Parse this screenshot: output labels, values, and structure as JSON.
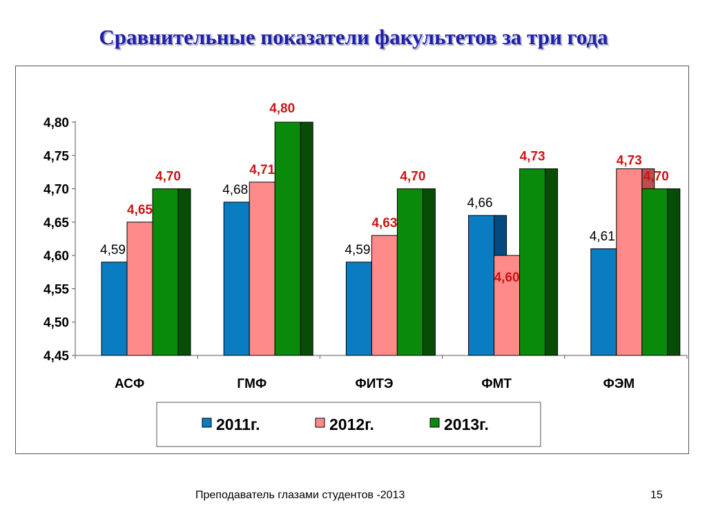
{
  "slide": {
    "title": "Сравнительные показатели факультетов за три года",
    "footer": "Преподаватель глазами студентов -2013",
    "page_number": "15"
  },
  "chart_data": {
    "type": "bar",
    "categories": [
      "АСФ",
      "ГМФ",
      "ФИТЭ",
      "ФМТ",
      "ФЭМ"
    ],
    "series": [
      {
        "name": "2011г.",
        "values": [
          4.59,
          4.68,
          4.59,
          4.66,
          4.61
        ],
        "labels": [
          "4,59",
          "4,68",
          "4,59",
          "4,66",
          "4,61"
        ],
        "color": "#0a7cc1",
        "side_color": "#044a7e",
        "label_color": "#000000"
      },
      {
        "name": "2012г.",
        "values": [
          4.65,
          4.71,
          4.63,
          4.6,
          4.73
        ],
        "labels": [
          "4,65",
          "4,71",
          "4,63",
          "4,60",
          "4,73"
        ],
        "color": "#ff8a8a",
        "side_color": "#b85050",
        "label_color": "#cc1414"
      },
      {
        "name": "2013г.",
        "values": [
          4.7,
          4.8,
          4.7,
          4.73,
          4.7
        ],
        "labels": [
          "4,70",
          "4,80",
          "4,70",
          "4,73",
          "4,70"
        ],
        "color": "#0a8a0a",
        "side_color": "#064d06",
        "label_color": "#cc1414"
      }
    ],
    "ylim": [
      4.45,
      4.8
    ],
    "yticks": [
      4.45,
      4.5,
      4.55,
      4.6,
      4.65,
      4.7,
      4.75,
      4.8
    ],
    "ytick_labels": [
      "4,45",
      "4,50",
      "4,55",
      "4,60",
      "4,65",
      "4,70",
      "4,75",
      "4,80"
    ],
    "legend_position": "bottom",
    "grid": false
  }
}
